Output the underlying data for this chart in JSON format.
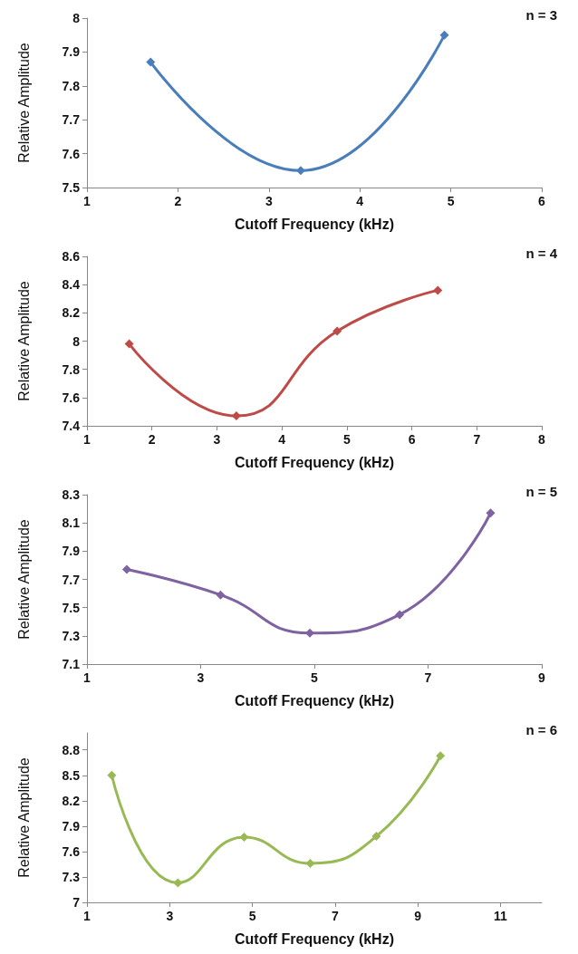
{
  "chart_data": [
    {
      "type": "line",
      "title": "n = 3",
      "xlabel": "Cutoff Frequency (kHz)",
      "ylabel": "Relative Amplitude",
      "x": [
        1.7,
        3.35,
        4.93
      ],
      "series": [
        {
          "color": "#4a7ebb",
          "values": [
            7.87,
            7.55,
            7.95
          ]
        }
      ],
      "xlim": [
        1,
        6
      ],
      "xticks": [
        1,
        2,
        3,
        4,
        5,
        6
      ],
      "ylim": [
        7.5,
        8
      ],
      "yticks": [
        7.5,
        7.6,
        7.7,
        7.8,
        7.9,
        8
      ],
      "marker": "diamond",
      "grid": false
    },
    {
      "type": "line",
      "title": "n = 4",
      "xlabel": "Cutoff Frequency (kHz)",
      "ylabel": "Relative Amplitude",
      "x": [
        1.65,
        3.3,
        4.85,
        6.4
      ],
      "series": [
        {
          "color": "#be4b48",
          "values": [
            7.98,
            7.47,
            8.07,
            8.36
          ]
        }
      ],
      "xlim": [
        1,
        8
      ],
      "xticks": [
        1,
        2,
        3,
        4,
        5,
        6,
        7,
        8
      ],
      "ylim": [
        7.4,
        8.6
      ],
      "yticks": [
        7.4,
        7.6,
        7.8,
        8,
        8.2,
        8.4,
        8.6
      ],
      "marker": "diamond",
      "grid": false
    },
    {
      "type": "line",
      "title": "n = 5",
      "xlabel": "Cutoff Frequency (kHz)",
      "ylabel": "Relative Amplitude",
      "x": [
        1.7,
        3.35,
        4.92,
        6.5,
        8.1
      ],
      "series": [
        {
          "color": "#7e62a1",
          "values": [
            7.77,
            7.59,
            7.32,
            7.45,
            8.17
          ]
        }
      ],
      "xlim": [
        1,
        9
      ],
      "xticks": [
        1,
        3,
        5,
        7,
        9
      ],
      "ylim": [
        7.1,
        8.3
      ],
      "yticks": [
        7.1,
        7.3,
        7.5,
        7.7,
        7.9,
        8.1,
        8.3
      ],
      "marker": "diamond",
      "grid": false
    },
    {
      "type": "line",
      "title": "n = 6",
      "xlabel": "Cutoff Frequency (kHz)",
      "ylabel": "Relative Amplitude",
      "x": [
        1.6,
        3.2,
        4.8,
        6.4,
        8.0,
        9.55
      ],
      "series": [
        {
          "color": "#98b954",
          "values": [
            8.5,
            7.23,
            7.77,
            7.46,
            7.78,
            8.73
          ]
        }
      ],
      "xlim": [
        1,
        12
      ],
      "xticks": [
        1,
        3,
        5,
        7,
        9,
        11
      ],
      "ylim": [
        7,
        9
      ],
      "yticks": [
        7,
        7.3,
        7.6,
        7.9,
        8.2,
        8.5,
        8.8
      ],
      "marker": "diamond",
      "grid": false
    }
  ]
}
